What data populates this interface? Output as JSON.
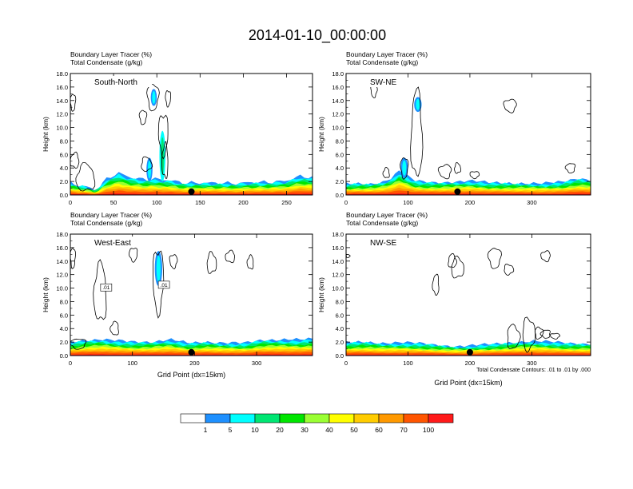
{
  "figure_title": "2014-01-10_00:00:00",
  "colors": {
    "levels": [
      "#ffffff",
      "#1e90ff",
      "#00ffff",
      "#00e673",
      "#00e600",
      "#9aff33",
      "#ffff00",
      "#ffcc00",
      "#ff9900",
      "#ff5500",
      "#ff1a1a"
    ],
    "contour": "#000000",
    "marker": "#000000"
  },
  "chart_data": [
    {
      "type": "heatmap",
      "panel": "South-North",
      "title_lines": [
        "Boundary Layer Tracer   (%)",
        "Total Condensate   (g/kg)"
      ],
      "xlabel": "",
      "ylabel": "Height (km)",
      "xlim": [
        0,
        280
      ],
      "ylim": [
        0,
        18
      ],
      "xticks": [
        0,
        50,
        100,
        150,
        200,
        250
      ],
      "yticks": [
        "0.0",
        "2.0",
        "4.0",
        "6.0",
        "8.0",
        "10.0",
        "12.0",
        "14.0",
        "16.0",
        "18.0"
      ],
      "surface_marker_x": 140,
      "tracer_profile": {
        "x": [
          0,
          10,
          20,
          30,
          40,
          55,
          70,
          85,
          95,
          105,
          115,
          130,
          150,
          170,
          190,
          210,
          230,
          250,
          265,
          280
        ],
        "top": [
          1.8,
          1.4,
          1.2,
          0.6,
          2.2,
          3.3,
          2.6,
          2.3,
          2.4,
          2.3,
          2.2,
          1.8,
          1.8,
          1.8,
          1.7,
          1.9,
          1.9,
          2.1,
          2.8,
          2.6
        ]
      },
      "plumes": [
        {
          "x": [
            93,
            100
          ],
          "y": [
            13.2,
            15.7
          ],
          "level": 1
        },
        {
          "x": [
            103,
            110
          ],
          "y": [
            2,
            9.5
          ],
          "level": 2
        },
        {
          "x": [
            88,
            95
          ],
          "y": [
            2,
            5.5
          ],
          "level": 1
        }
      ],
      "contours": [
        {
          "x": [
            89,
            102
          ],
          "y": [
            12.6,
            16.5
          ]
        },
        {
          "x": [
            102,
            113
          ],
          "y": [
            6,
            12
          ]
        },
        {
          "x": [
            106,
            113
          ],
          "y": [
            2.5,
            7.5
          ]
        },
        {
          "x": [
            0,
            6
          ],
          "y": [
            12.5,
            15
          ]
        },
        {
          "x": [
            0,
            10
          ],
          "y": [
            4,
            6.2
          ]
        },
        {
          "x": [
            7,
            28
          ],
          "y": [
            0.5,
            4.5
          ]
        },
        {
          "x": [
            82,
            94
          ],
          "y": [
            3.5,
            5.6
          ]
        },
        {
          "x": [
            80,
            88
          ],
          "y": [
            10.5,
            12.6
          ]
        },
        {
          "x": [
            110,
            116
          ],
          "y": [
            13.2,
            15.5
          ]
        }
      ]
    },
    {
      "type": "heatmap",
      "panel": "SW-NE",
      "title_lines": [
        "Boundary Layer Tracer   (%)",
        "Total Condensate   (g/kg)"
      ],
      "xlabel": "",
      "ylabel": "Height (km)",
      "xlim": [
        0,
        395
      ],
      "ylim": [
        0,
        18
      ],
      "xticks": [
        0,
        100,
        200,
        300
      ],
      "yticks": [
        "0.0",
        "2.0",
        "4.0",
        "6.0",
        "8.0",
        "10.0",
        "12.0",
        "14.0",
        "16.0",
        "18.0"
      ],
      "surface_marker_x": 180,
      "tracer_profile": {
        "x": [
          0,
          20,
          40,
          60,
          75,
          85,
          95,
          110,
          130,
          150,
          170,
          200,
          230,
          260,
          290,
          320,
          350,
          375,
          395
        ],
        "top": [
          1.6,
          1.7,
          1.7,
          2.0,
          2.6,
          3.6,
          3.0,
          2.1,
          1.9,
          1.9,
          2.0,
          2.1,
          1.8,
          1.8,
          1.8,
          1.7,
          1.9,
          2.5,
          2.3
        ]
      },
      "plumes": [
        {
          "x": [
            110,
            122
          ],
          "y": [
            12.3,
            14.5
          ],
          "level": 1
        },
        {
          "x": [
            88,
            100
          ],
          "y": [
            2.5,
            5.5
          ],
          "level": 1
        }
      ],
      "contours": [
        {
          "x": [
            105,
            123
          ],
          "y": [
            2.5,
            15.3
          ]
        },
        {
          "x": [
            40,
            50
          ],
          "y": [
            14.5,
            16.5
          ]
        },
        {
          "x": [
            255,
            275
          ],
          "y": [
            12.3,
            14.2
          ]
        },
        {
          "x": [
            88,
            100
          ],
          "y": [
            2.5,
            5.6
          ]
        },
        {
          "x": [
            150,
            170
          ],
          "y": [
            2.5,
            4.5
          ]
        },
        {
          "x": [
            175,
            185
          ],
          "y": [
            3.2,
            4.7
          ]
        },
        {
          "x": [
            355,
            370
          ],
          "y": [
            3.3,
            4.7
          ]
        },
        {
          "x": [
            200,
            215
          ],
          "y": [
            2.5,
            3.5
          ]
        },
        {
          "x": [
            60,
            70
          ],
          "y": [
            2.5,
            4
          ]
        }
      ]
    },
    {
      "type": "heatmap",
      "panel": "West-East",
      "title_lines": [
        "Boundary Layer Tracer   (%)",
        "Total Condensate   (g/kg)"
      ],
      "xlabel": "Grid Point (dx=15km)",
      "ylabel": "Height (km)",
      "xlim": [
        0,
        390
      ],
      "ylim": [
        0,
        18
      ],
      "xticks": [
        0,
        100,
        200,
        300
      ],
      "yticks": [
        "0.0",
        "2.0",
        "4.0",
        "6.0",
        "8.0",
        "10.0",
        "12.0",
        "14.0",
        "16.0",
        "18.0"
      ],
      "surface_marker_x": 195,
      "contour_labels": [
        {
          "text": ".01",
          "x": 50,
          "y": 9.8
        },
        {
          "text": ".01",
          "x": 143,
          "y": 10.2
        }
      ],
      "tracer_profile": {
        "x": [
          0,
          25,
          50,
          75,
          100,
          130,
          160,
          190,
          220,
          250,
          280,
          310,
          340,
          370,
          390
        ],
        "top": [
          1.9,
          2.3,
          2.5,
          2.2,
          2.0,
          2.1,
          2.4,
          1.8,
          2.1,
          1.9,
          1.8,
          2.4,
          2.4,
          2.3,
          2.5
        ]
      },
      "plumes": [
        {
          "x": [
            136,
            148
          ],
          "y": [
            10.3,
            15.5
          ],
          "level": 1
        }
      ],
      "contours": [
        {
          "x": [
            38,
            58
          ],
          "y": [
            5,
            13.5
          ]
        },
        {
          "x": [
            133,
            150
          ],
          "y": [
            6.5,
            15.8
          ]
        },
        {
          "x": [
            95,
            108
          ],
          "y": [
            14,
            16
          ]
        },
        {
          "x": [
            160,
            172
          ],
          "y": [
            13,
            15
          ]
        },
        {
          "x": [
            0,
            8
          ],
          "y": [
            13,
            16
          ]
        },
        {
          "x": [
            220,
            235
          ],
          "y": [
            12.2,
            15.2
          ]
        },
        {
          "x": [
            250,
            265
          ],
          "y": [
            13.8,
            15.5
          ]
        },
        {
          "x": [
            285,
            295
          ],
          "y": [
            12.8,
            14.8
          ]
        },
        {
          "x": [
            65,
            78
          ],
          "y": [
            3,
            5
          ]
        },
        {
          "x": [
            0,
            25
          ],
          "y": [
            1,
            2.5
          ]
        }
      ]
    },
    {
      "type": "heatmap",
      "panel": "NW-SE",
      "title_lines": [
        "Boundary Layer Tracer   (%)",
        "Total Condensate   (g/kg)"
      ],
      "xlabel": "Grid Point (dx=15km)",
      "ylabel": "Height (km)",
      "xlim": [
        0,
        395
      ],
      "ylim": [
        0,
        18
      ],
      "xticks": [
        0,
        100,
        200,
        300
      ],
      "yticks": [
        "0.0",
        "2.0",
        "4.0",
        "6.0",
        "8.0",
        "10.0",
        "12.0",
        "14.0",
        "16.0",
        "18.0"
      ],
      "surface_marker_x": 200,
      "footnote": "Total Condensate Contours: .01 to .01 by .000",
      "tracer_profile": {
        "x": [
          0,
          30,
          60,
          90,
          120,
          150,
          180,
          210,
          240,
          270,
          300,
          330,
          360,
          395
        ],
        "top": [
          1.9,
          2.1,
          1.9,
          1.9,
          1.8,
          1.6,
          1.4,
          1.5,
          1.7,
          2.0,
          2.2,
          2.0,
          1.8,
          1.8
        ]
      },
      "plumes": [],
      "contours": [
        {
          "x": [
            260,
            280
          ],
          "y": [
            1,
            4.5
          ]
        },
        {
          "x": [
            285,
            305
          ],
          "y": [
            0.8,
            5.5
          ]
        },
        {
          "x": [
            305,
            318
          ],
          "y": [
            2.5,
            4.2
          ]
        },
        {
          "x": [
            170,
            190
          ],
          "y": [
            11.5,
            14.5
          ]
        },
        {
          "x": [
            230,
            250
          ],
          "y": [
            13,
            16
          ]
        },
        {
          "x": [
            255,
            270
          ],
          "y": [
            12,
            13.5
          ]
        },
        {
          "x": [
            165,
            178
          ],
          "y": [
            13,
            15
          ]
        },
        {
          "x": [
            140,
            150
          ],
          "y": [
            9,
            12
          ]
        },
        {
          "x": [
            315,
            330
          ],
          "y": [
            14,
            15.5
          ]
        },
        {
          "x": [
            0,
            6
          ],
          "y": [
            14.5,
            15
          ]
        },
        {
          "x": [
            315,
            330
          ],
          "y": [
            2.6,
            3.8
          ]
        },
        {
          "x": [
            330,
            345
          ],
          "y": [
            2.5,
            3.3
          ]
        }
      ]
    }
  ],
  "colorbar": {
    "labels": [
      "1",
      "5",
      "10",
      "20",
      "30",
      "40",
      "50",
      "60",
      "70",
      "100"
    ]
  }
}
